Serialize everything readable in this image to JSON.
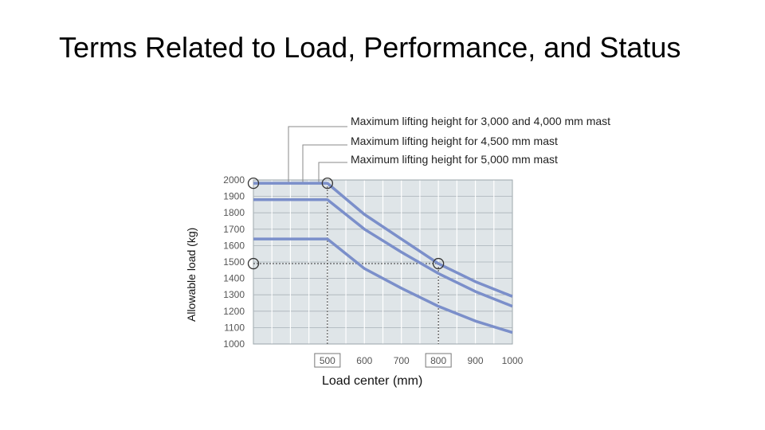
{
  "title": "Terms Related to Load, Performance, and Status",
  "chart_data": {
    "type": "line",
    "xlabel": "Load center (mm)",
    "ylabel": "Allowable load (kg)",
    "xlim": [
      300,
      1000
    ],
    "ylim": [
      1000,
      2000
    ],
    "x_ticks": [
      500,
      600,
      700,
      800,
      900,
      1000
    ],
    "x_ticks_boxed": [
      500,
      800
    ],
    "y_ticks": [
      2000,
      1900,
      1800,
      1700,
      1600,
      1500,
      1400,
      1300,
      1200,
      1100,
      1000
    ],
    "grid": true,
    "series": [
      {
        "x": [
          300,
          500,
          600,
          700,
          800,
          900,
          1000
        ],
        "y": [
          1980,
          1980,
          1790,
          1640,
          1490,
          1380,
          1290
        ]
      },
      {
        "x": [
          300,
          500,
          600,
          700,
          800,
          900,
          1000
        ],
        "y": [
          1880,
          1880,
          1700,
          1560,
          1430,
          1320,
          1230
        ]
      },
      {
        "x": [
          300,
          500,
          600,
          700,
          800,
          900,
          1000
        ],
        "y": [
          1640,
          1640,
          1460,
          1340,
          1230,
          1140,
          1070
        ]
      }
    ],
    "color": "#7b8fca",
    "markers": [
      {
        "x": 300,
        "y": 1980
      },
      {
        "x": 500,
        "y": 1980
      },
      {
        "x": 300,
        "y": 1490
      },
      {
        "x": 800,
        "y": 1490
      }
    ],
    "annotations": [
      {
        "text": "Maximum lifting height for 3,000 and 4,000 mm mast"
      },
      {
        "text": "Maximum lifting height for 4,500 mm mast"
      },
      {
        "text": "Maximum lifting height for 5,000 mm mast"
      }
    ]
  }
}
